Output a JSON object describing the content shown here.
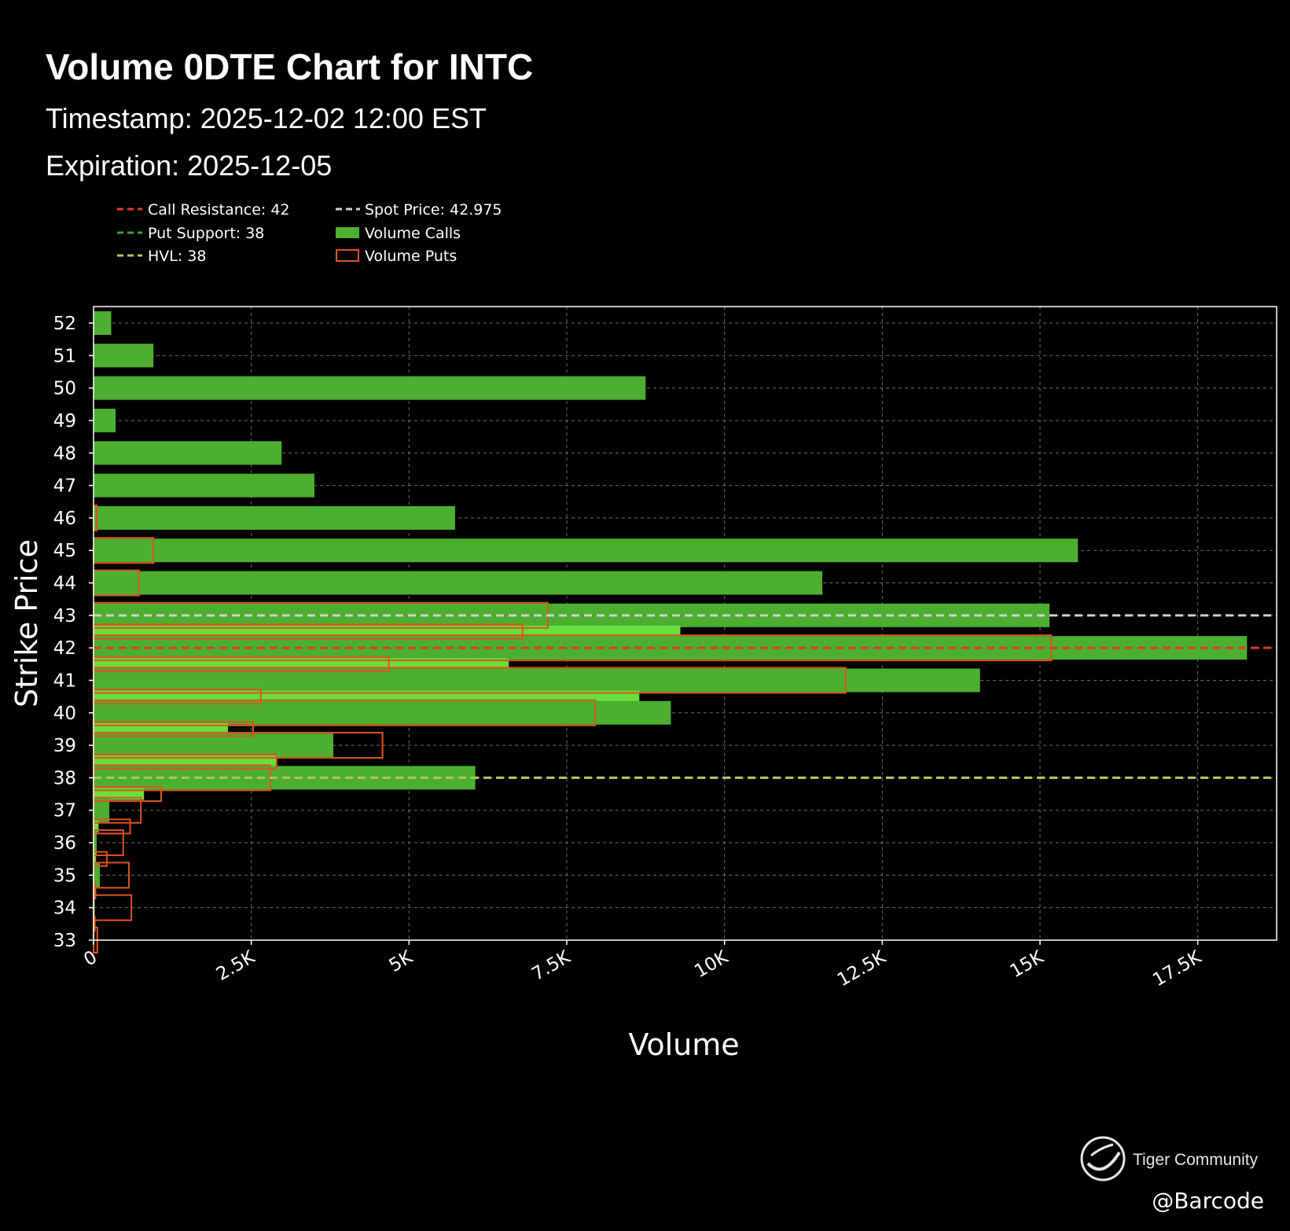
{
  "header": {
    "title": "Volume 0DTE Chart for INTC",
    "timestamp": "Timestamp: 2025-12-02 12:00 EST",
    "expiration": "Expiration: 2025-12-05"
  },
  "legend": {
    "call_resistance": "Call Resistance: 42",
    "spot_price": "Spot Price: 42.975",
    "put_support": "Put Support: 38",
    "volume_calls": "Volume Calls",
    "hvl": "HVL: 38",
    "volume_puts": "Volume Puts"
  },
  "chart_data": {
    "type": "bar",
    "orientation": "horizontal",
    "xlabel": "Volume",
    "ylabel": "Strike Price",
    "xlim": [
      0,
      18750
    ],
    "ylim": [
      33,
      52.5
    ],
    "x_ticks": [
      {
        "value": 0,
        "label": "0"
      },
      {
        "value": 2500,
        "label": "2.5K"
      },
      {
        "value": 5000,
        "label": "5K"
      },
      {
        "value": 7500,
        "label": "7.5K"
      },
      {
        "value": 10000,
        "label": "10K"
      },
      {
        "value": 12500,
        "label": "12.5K"
      },
      {
        "value": 15000,
        "label": "15K"
      },
      {
        "value": 17500,
        "label": "17.5K"
      }
    ],
    "y_ticks": [
      33,
      34,
      35,
      36,
      37,
      38,
      39,
      40,
      41,
      42,
      43,
      44,
      45,
      46,
      47,
      48,
      49,
      50,
      51,
      52
    ],
    "grid": true,
    "legend_position": "top-left",
    "colors": {
      "calls_fill": "#4caf30",
      "calls_light": "#66e03c",
      "puts_edge": "#e0531e",
      "call_resistance": "#e03a2a",
      "spot_price": "#d0d0d0",
      "put_support": "#3aa03a",
      "hvl": "#b5c45a"
    },
    "reference_lines": [
      {
        "name": "Call Resistance",
        "value": 42
      },
      {
        "name": "Spot Price",
        "value": 42.975
      },
      {
        "name": "Put Support",
        "value": 38
      },
      {
        "name": "HVL",
        "value": 38
      }
    ],
    "series": [
      {
        "name": "Volume Calls",
        "points": [
          {
            "strike": 52,
            "volume": 280
          },
          {
            "strike": 51,
            "volume": 950
          },
          {
            "strike": 50,
            "volume": 8750
          },
          {
            "strike": 49,
            "volume": 350
          },
          {
            "strike": 48,
            "volume": 2980
          },
          {
            "strike": 47,
            "volume": 3500
          },
          {
            "strike": 46,
            "volume": 5730
          },
          {
            "strike": 45,
            "volume": 15600
          },
          {
            "strike": 44,
            "volume": 11550
          },
          {
            "strike": 43,
            "volume": 15150
          },
          {
            "strike": 42.5,
            "volume": 9300
          },
          {
            "strike": 42,
            "volume": 18280
          },
          {
            "strike": 41.5,
            "volume": 6580
          },
          {
            "strike": 41,
            "volume": 14050
          },
          {
            "strike": 40.5,
            "volume": 8650
          },
          {
            "strike": 40,
            "volume": 9150
          },
          {
            "strike": 39.5,
            "volume": 2130
          },
          {
            "strike": 39,
            "volume": 3800
          },
          {
            "strike": 38.5,
            "volume": 2900
          },
          {
            "strike": 38,
            "volume": 6050
          },
          {
            "strike": 37.5,
            "volume": 800
          },
          {
            "strike": 37,
            "volume": 250
          },
          {
            "strike": 36.5,
            "volume": 80
          },
          {
            "strike": 36,
            "volume": 50
          },
          {
            "strike": 35.5,
            "volume": 40
          },
          {
            "strike": 35,
            "volume": 100
          },
          {
            "strike": 34.5,
            "volume": 30
          },
          {
            "strike": 34,
            "volume": 20
          },
          {
            "strike": 33.5,
            "volume": 10
          },
          {
            "strike": 33,
            "volume": 5
          }
        ]
      },
      {
        "name": "Volume Puts",
        "points": [
          {
            "strike": 46,
            "volume": 50
          },
          {
            "strike": 45,
            "volume": 950
          },
          {
            "strike": 44,
            "volume": 720
          },
          {
            "strike": 43,
            "volume": 7200
          },
          {
            "strike": 42.5,
            "volume": 6800
          },
          {
            "strike": 42,
            "volume": 15180
          },
          {
            "strike": 41.5,
            "volume": 4680
          },
          {
            "strike": 41,
            "volume": 11920
          },
          {
            "strike": 40.5,
            "volume": 2650
          },
          {
            "strike": 40,
            "volume": 7950
          },
          {
            "strike": 39.5,
            "volume": 2530
          },
          {
            "strike": 39,
            "volume": 4580
          },
          {
            "strike": 38.5,
            "volume": 2900
          },
          {
            "strike": 38,
            "volume": 2800
          },
          {
            "strike": 37.5,
            "volume": 1070
          },
          {
            "strike": 37,
            "volume": 750
          },
          {
            "strike": 36.5,
            "volume": 580
          },
          {
            "strike": 36,
            "volume": 470
          },
          {
            "strike": 35.5,
            "volume": 210
          },
          {
            "strike": 35,
            "volume": 560
          },
          {
            "strike": 34.5,
            "volume": 30
          },
          {
            "strike": 34,
            "volume": 600
          },
          {
            "strike": 33.5,
            "volume": 20
          },
          {
            "strike": 33,
            "volume": 60
          }
        ]
      }
    ]
  },
  "watermark": {
    "brand": "Tiger Community",
    "handle": "@Barcode"
  }
}
